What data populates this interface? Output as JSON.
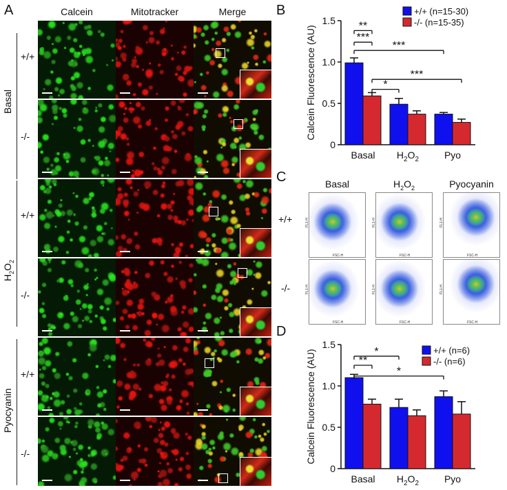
{
  "panel_letters": {
    "a": "A",
    "b": "B",
    "c": "C",
    "d": "D"
  },
  "panelA": {
    "columns": [
      "Calcein",
      "Mitotracker",
      "Merge"
    ],
    "groups": [
      {
        "label": "Basal",
        "rows": [
          "+/+",
          "-/-"
        ]
      },
      {
        "label": "H2O2",
        "rows": [
          "+/+",
          "-/-"
        ]
      },
      {
        "label": "Pyocyanin",
        "rows": [
          "+/+",
          "-/-"
        ]
      }
    ]
  },
  "panelC": {
    "columns": [
      "Basal",
      "H2O2",
      "Pyocyanin"
    ],
    "rows": [
      "+/+",
      "-/-"
    ],
    "x_axis_label": "FSC-H",
    "y_axis_label": "FL1-H",
    "x_ticks": [
      "0",
      "200",
      "400",
      "600",
      "800",
      "1K"
    ],
    "y_ticks": [
      "10⁰",
      "10¹",
      "10²",
      "10³",
      "10⁴"
    ]
  },
  "colors": {
    "wt": "#1010ee",
    "ko": "#d42a2f"
  },
  "chart_data": [
    {
      "panel": "B",
      "type": "bar",
      "ylabel": "Calcein Fluorescence (AU)",
      "ylim": [
        0,
        1.5
      ],
      "yticks": [
        "0",
        "0.5",
        "1.0",
        "1.5"
      ],
      "categories": [
        "Basal",
        "H2O2",
        "Pyo"
      ],
      "series": [
        {
          "name": "+/+ (n=15-30)",
          "values": [
            0.99,
            0.49,
            0.37
          ],
          "errors": [
            0.06,
            0.07,
            0.02
          ]
        },
        {
          "name": "-/-  (n=15-35)",
          "values": [
            0.59,
            0.37,
            0.27
          ],
          "errors": [
            0.04,
            0.04,
            0.04
          ]
        }
      ],
      "significance": [
        "**",
        "***",
        "***",
        "*",
        "***"
      ]
    },
    {
      "panel": "D",
      "type": "bar",
      "ylabel": "Calcein Fluorescence (AU)",
      "ylim": [
        0,
        1.5
      ],
      "yticks": [
        "0",
        "0.5",
        "1.0",
        "1.5"
      ],
      "categories": [
        "Basal",
        "H2O2",
        "Pyo"
      ],
      "series": [
        {
          "name": "+/+ (n=6)",
          "values": [
            1.1,
            0.74,
            0.87
          ],
          "errors": [
            0.04,
            0.1,
            0.07
          ]
        },
        {
          "name": "-/- (n=6)",
          "values": [
            0.78,
            0.64,
            0.66
          ],
          "errors": [
            0.06,
            0.07,
            0.15
          ]
        }
      ],
      "significance": [
        "*",
        "**",
        "*"
      ]
    }
  ]
}
